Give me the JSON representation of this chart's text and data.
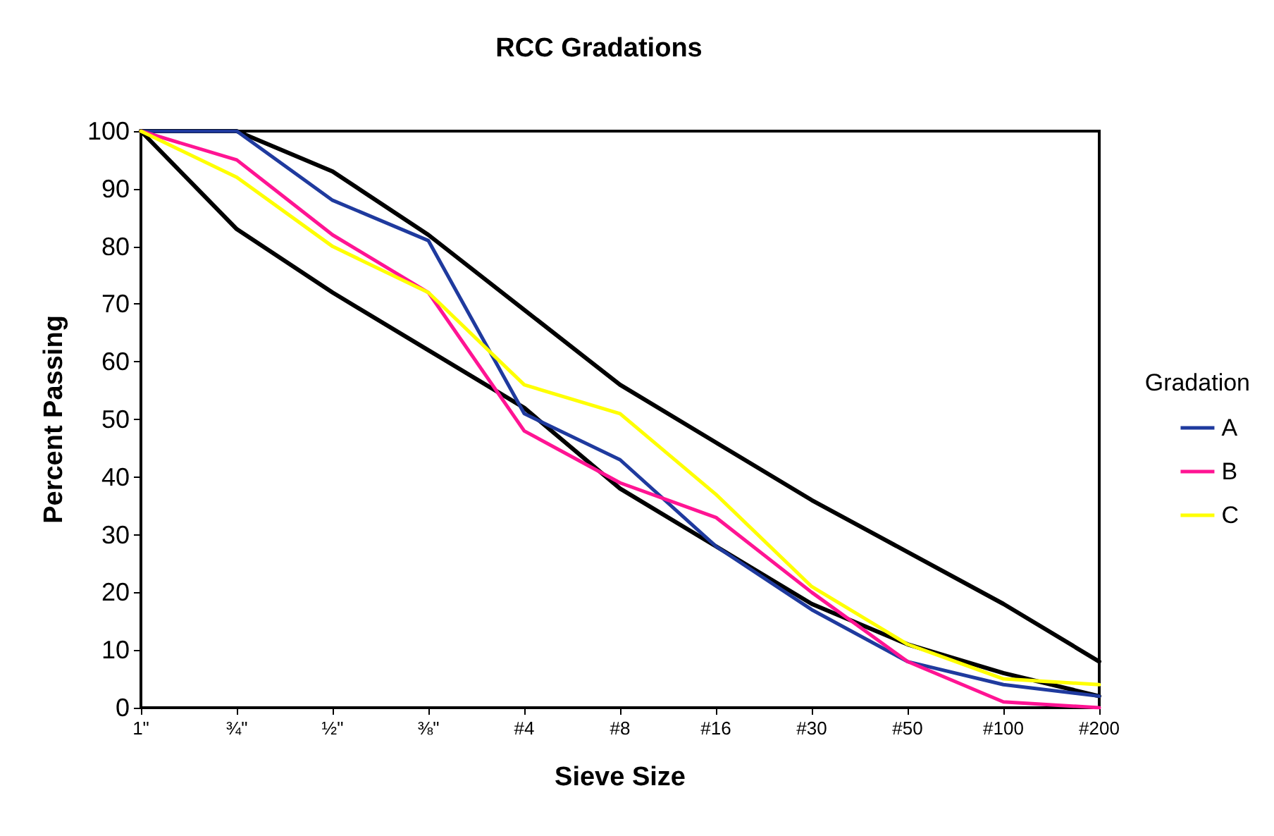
{
  "chart_data": {
    "type": "line",
    "title": "RCC Gradations",
    "xlabel": "Sieve Size",
    "ylabel": "Percent Passing",
    "legend_title": "Gradation",
    "categories": [
      "1\"",
      "¾\"",
      "½\"",
      "⅜\"",
      "#4",
      "#8",
      "#16",
      "#30",
      "#50",
      "#100",
      "#200"
    ],
    "series": [
      {
        "color": "#000000",
        "values": [
          100,
          100,
          93,
          82,
          69,
          56,
          46,
          36,
          27,
          18,
          8
        ]
      },
      {
        "color": "#000000",
        "values": [
          100,
          83,
          72,
          62,
          52,
          38,
          28,
          18,
          11,
          6,
          2
        ]
      },
      {
        "name": "A",
        "color": "#1f3a9e",
        "values": [
          100,
          100,
          88,
          81,
          51,
          43,
          28,
          17,
          8,
          4,
          2
        ]
      },
      {
        "name": "B",
        "color": "#ff1493",
        "values": [
          100,
          95,
          82,
          72,
          48,
          39,
          33,
          20,
          8,
          1,
          0
        ]
      },
      {
        "name": "C",
        "color": "#ffff00",
        "values": [
          100,
          92,
          80,
          72,
          56,
          51,
          37,
          21,
          11,
          5,
          4
        ]
      }
    ],
    "ylim": [
      0,
      100
    ],
    "yticks": [
      0,
      10,
      20,
      30,
      40,
      50,
      60,
      70,
      80,
      90,
      100
    ],
    "grid": false,
    "legend": "right",
    "marker": "none",
    "line_style": "solid"
  }
}
